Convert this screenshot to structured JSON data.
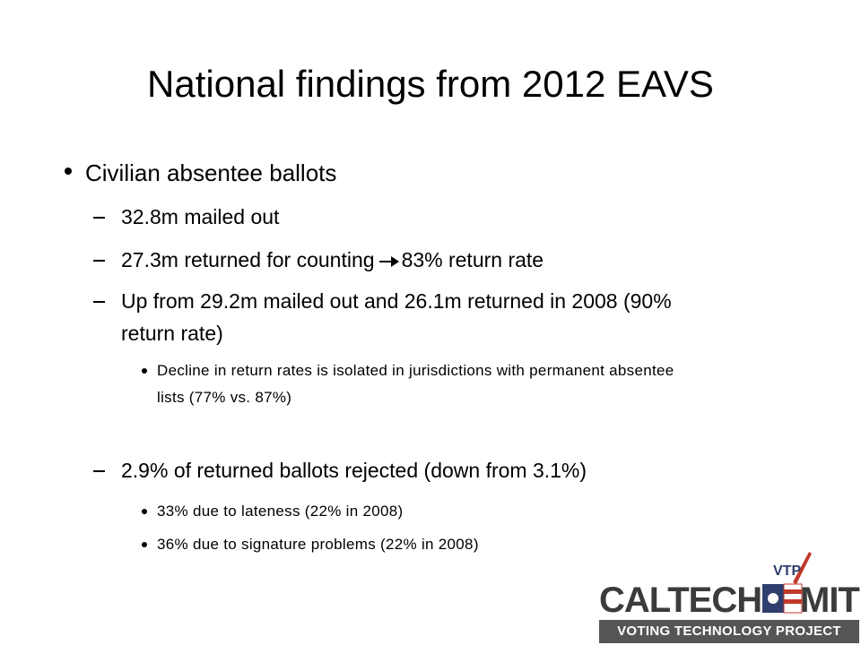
{
  "title": "National findings from 2012 EAVS",
  "bullets": [
    {
      "text": "Civilian absentee ballots",
      "items": [
        {
          "text": "32.8m mailed out"
        },
        {
          "text": "27.3m returned for counting",
          "after_arrow": "83% return rate"
        },
        {
          "text": "Up from 29.2m mailed out and 26.1m returned in 2008 (90% return rate)",
          "items": [
            "Decline in return rates is isolated in jurisdictions with permanent absentee lists (77% vs. 87%)"
          ]
        },
        {
          "text": "2.9% of returned ballots rejected (down from 3.1%)",
          "items": [
            "33% due to lateness (22% in 2008)",
            "36% due to signature problems (22% in 2008)"
          ]
        }
      ]
    }
  ],
  "logo": {
    "left": "CALTECH",
    "right": "MIT",
    "badge": "VTP",
    "tagline": "VOTING TECHNOLOGY PROJECT"
  }
}
